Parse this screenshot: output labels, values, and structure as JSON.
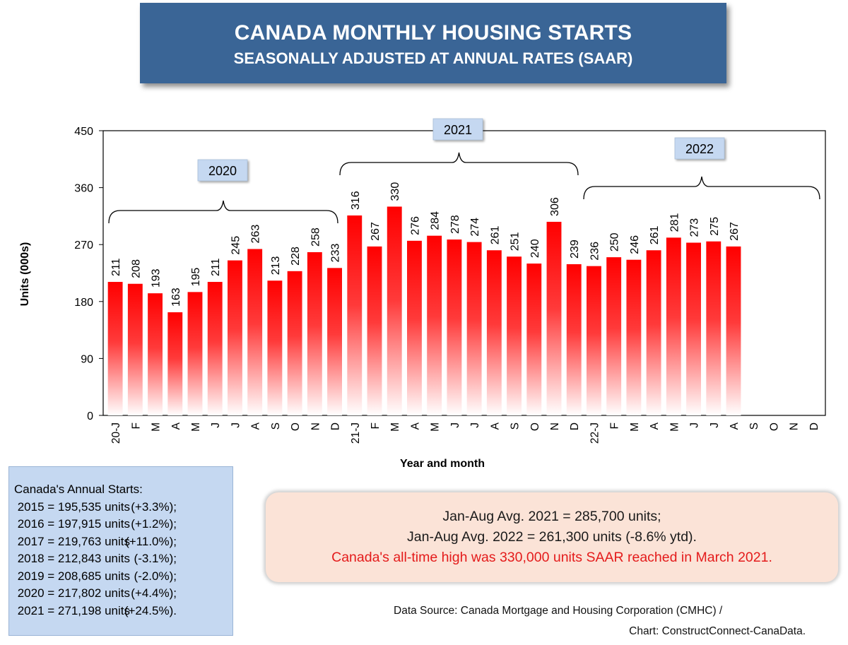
{
  "title": "CANADA MONTHLY HOUSING STARTS",
  "subtitle": "SEASONALLY ADJUSTED AT ANNUAL RATES (SAAR)",
  "chart_data": {
    "type": "bar",
    "ylabel": "Units (000s)",
    "xlabel": "Year and month",
    "ylim": [
      0,
      450
    ],
    "yticks": [
      "0",
      "90",
      "180",
      "270",
      "360",
      "450"
    ],
    "categories": [
      "20-J",
      "F",
      "M",
      "A",
      "M",
      "J",
      "J",
      "A",
      "S",
      "O",
      "N",
      "D",
      "21-J",
      "F",
      "M",
      "A",
      "M",
      "J",
      "J",
      "A",
      "S",
      "O",
      "N",
      "D",
      "22-J",
      "F",
      "M",
      "A",
      "M",
      "J",
      "J",
      "A",
      "S",
      "O",
      "N",
      "D"
    ],
    "values": [
      211,
      208,
      193,
      163,
      195,
      211,
      245,
      263,
      213,
      228,
      258,
      233,
      316,
      267,
      330,
      276,
      284,
      278,
      274,
      261,
      251,
      240,
      306,
      239,
      236,
      250,
      246,
      261,
      281,
      273,
      275,
      267,
      null,
      null,
      null,
      null
    ],
    "year_labels": [
      "2020",
      "2021",
      "2022"
    ],
    "bar_color": "#ff0000",
    "grid": false
  },
  "annual": {
    "title": "Canada's Annual Starts:",
    "rows": [
      {
        "year": "2015 = 195,535 units",
        "change": "(+3.3%);"
      },
      {
        "year": "2016 = 197,915 units",
        "change": "(+1.2%);"
      },
      {
        "year": "2017 = 219,763 units",
        "change": "(+11.0%);"
      },
      {
        "year": "2018 = 212,843 units",
        "change": "(-3.1%);"
      },
      {
        "year": "2019 = 208,685 units",
        "change": "(-2.0%);"
      },
      {
        "year": "2020 = 217,802 units",
        "change": "(+4.4%);"
      },
      {
        "year": "2021 = 271,198 units",
        "change": "(+24.5%)."
      }
    ]
  },
  "averages": {
    "line1": "Jan-Aug Avg. 2021 = 285,700 units;",
    "line2": "Jan-Aug Avg. 2022 = 261,300 units (-8.6% ytd).",
    "line3": "Canada's all-time high was 330,000 units SAAR reached in March 2021."
  },
  "source": {
    "line1": "Data Source:  Canada Mortgage and Housing Corporation (CMHC) /",
    "line2": "Chart: ConstructConnect-CanaData."
  }
}
